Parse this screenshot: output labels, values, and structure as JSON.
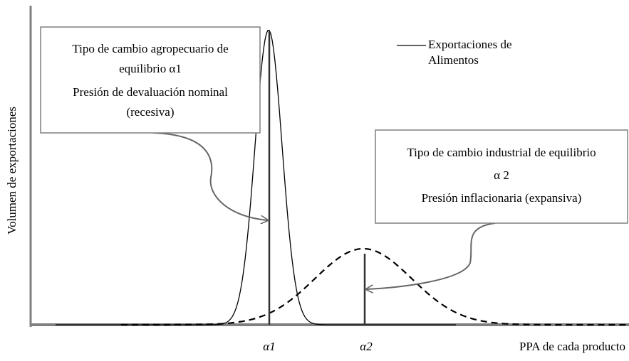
{
  "axes": {
    "y_label": "Volumen de exportaciones",
    "x_label": "PPA de cada producto",
    "x_marks": [
      "α1",
      "α2"
    ]
  },
  "legend": {
    "lines": [
      "Exportaciones de",
      "Alimentos"
    ]
  },
  "callouts": [
    {
      "lines": [
        "Tipo de cambio agropecuario de",
        "equilibrio  α1",
        "Presión de devaluación nominal",
        "(recesiva)"
      ]
    },
    {
      "lines": [
        "Tipo de cambio industrial de equilibrio",
        "α 2",
        "Presión inflacionaria (expansiva)"
      ]
    }
  ]
}
